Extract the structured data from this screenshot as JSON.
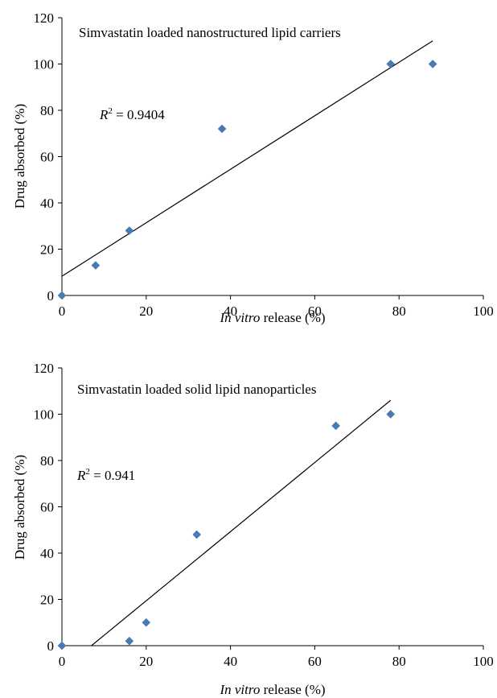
{
  "chart_data": [
    {
      "type": "scatter",
      "title": "Simvastatin loaded nanostructured lipid carriers",
      "xlabel_italic": "In vitro",
      "xlabel_rest": " release (%)",
      "ylabel": "Drug absorbed (%)",
      "xlim": [
        0,
        100
      ],
      "ylim": [
        0,
        120
      ],
      "xticks": [
        0,
        20,
        40,
        60,
        80,
        100
      ],
      "yticks": [
        0,
        20,
        40,
        60,
        80,
        100,
        120
      ],
      "grid": false,
      "marker_color": "#4a7ab5",
      "points": [
        {
          "x": 0,
          "y": 0
        },
        {
          "x": 8,
          "y": 13
        },
        {
          "x": 16,
          "y": 28
        },
        {
          "x": 38,
          "y": 72
        },
        {
          "x": 78,
          "y": 100
        },
        {
          "x": 88,
          "y": 100
        }
      ],
      "trendline": {
        "x": [
          0,
          88
        ],
        "y": [
          8.3,
          110
        ]
      },
      "r2_prefix": "R",
      "r2_sup": "2",
      "r2_value": " = 0.9404"
    },
    {
      "type": "scatter",
      "title": "Simvastatin loaded solid lipid nanoparticles",
      "xlabel_italic": "In vitro",
      "xlabel_rest": " release (%)",
      "ylabel": "Drug absorbed (%)",
      "xlim": [
        0,
        100
      ],
      "ylim": [
        0,
        120
      ],
      "xticks": [
        0,
        20,
        40,
        60,
        80,
        100
      ],
      "yticks": [
        0,
        20,
        40,
        60,
        80,
        100,
        120
      ],
      "grid": false,
      "marker_color": "#4a7ab5",
      "points": [
        {
          "x": 0,
          "y": 0
        },
        {
          "x": 16,
          "y": 2
        },
        {
          "x": 20,
          "y": 10
        },
        {
          "x": 32,
          "y": 48
        },
        {
          "x": 65,
          "y": 95
        },
        {
          "x": 78,
          "y": 100
        }
      ],
      "trendline": {
        "x": [
          7,
          78
        ],
        "y": [
          0,
          106
        ]
      },
      "r2_prefix": "R",
      "r2_sup": "2",
      "r2_value": " = 0.941"
    }
  ]
}
